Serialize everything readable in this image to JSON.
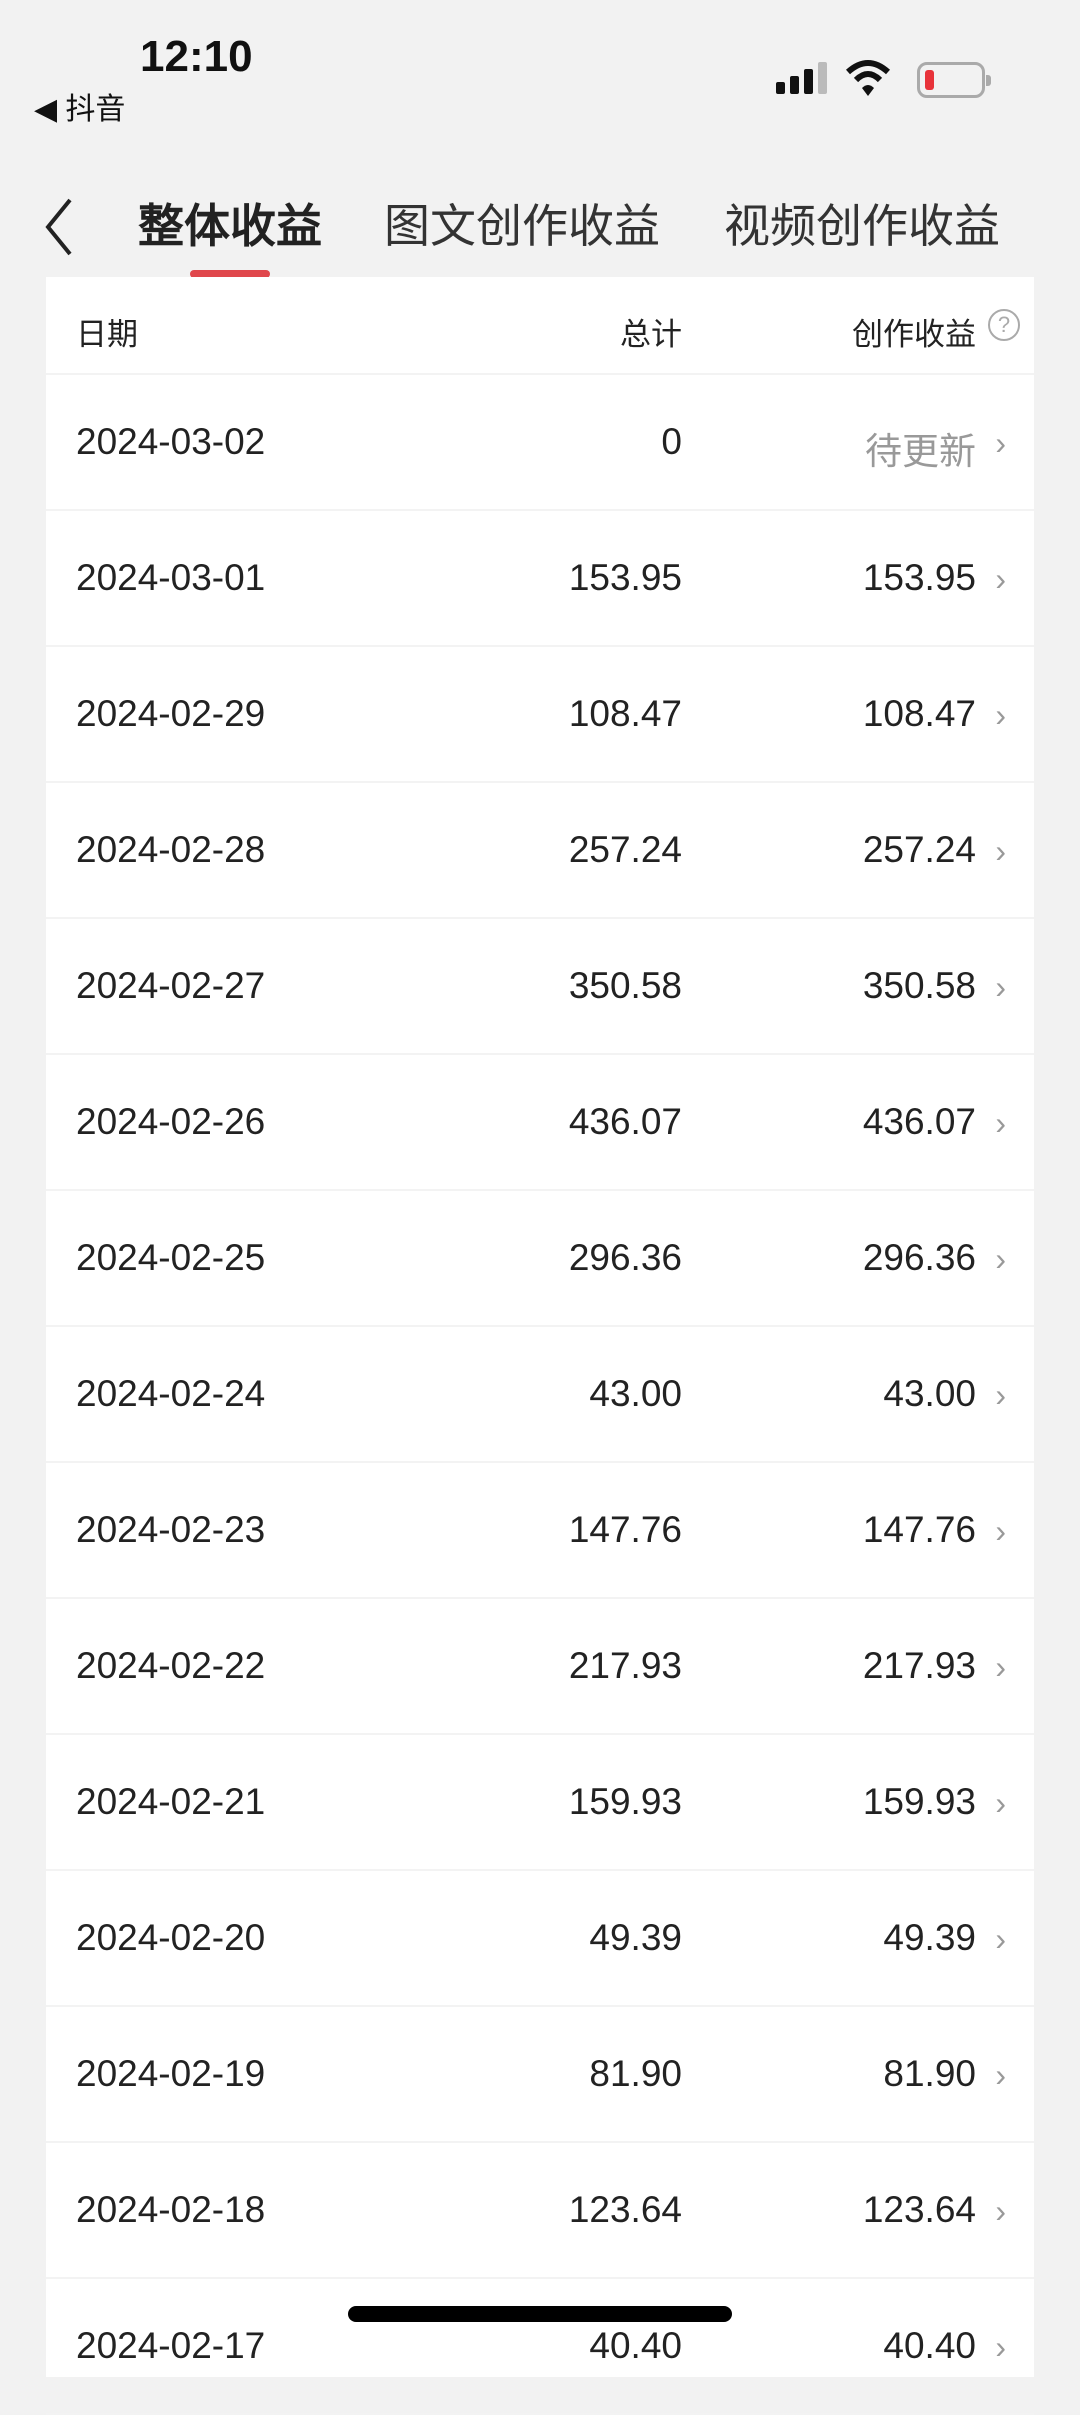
{
  "status_bar": {
    "time": "12:10",
    "back_app": "◀ 抖音",
    "battery_color": "#e8333a"
  },
  "nav": {
    "tabs": [
      {
        "label": "整体收益",
        "active": true
      },
      {
        "label": "图文创作收益"
      },
      {
        "label": "视频创作收益"
      }
    ],
    "accent": "#e0474c"
  },
  "table": {
    "headers": {
      "date": "日期",
      "total": "总计",
      "creation": "创作收益"
    },
    "rows": [
      {
        "date": "2024-03-02",
        "total": "0",
        "creation": "待更新"
      },
      {
        "date": "2024-03-01",
        "total": "153.95",
        "creation": "153.95"
      },
      {
        "date": "2024-02-29",
        "total": "108.47",
        "creation": "108.47"
      },
      {
        "date": "2024-02-28",
        "total": "257.24",
        "creation": "257.24"
      },
      {
        "date": "2024-02-27",
        "total": "350.58",
        "creation": "350.58"
      },
      {
        "date": "2024-02-26",
        "total": "436.07",
        "creation": "436.07"
      },
      {
        "date": "2024-02-25",
        "total": "296.36",
        "creation": "296.36"
      },
      {
        "date": "2024-02-24",
        "total": "43.00",
        "creation": "43.00"
      },
      {
        "date": "2024-02-23",
        "total": "147.76",
        "creation": "147.76"
      },
      {
        "date": "2024-02-22",
        "total": "217.93",
        "creation": "217.93"
      },
      {
        "date": "2024-02-21",
        "total": "159.93",
        "creation": "159.93"
      },
      {
        "date": "2024-02-20",
        "total": "49.39",
        "creation": "49.39"
      },
      {
        "date": "2024-02-19",
        "total": "81.90",
        "creation": "81.90"
      },
      {
        "date": "2024-02-18",
        "total": "123.64",
        "creation": "123.64"
      },
      {
        "date": "2024-02-17",
        "total": "40.40",
        "creation": "40.40"
      }
    ]
  }
}
